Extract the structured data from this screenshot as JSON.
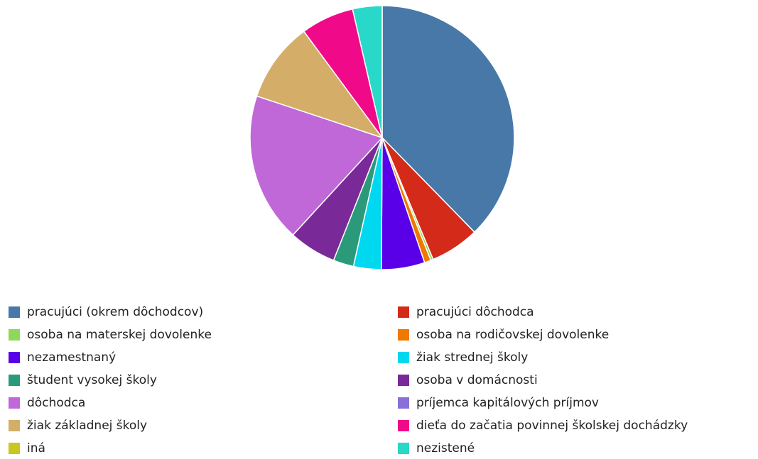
{
  "chart_data": {
    "type": "pie",
    "categories": [
      "pracujúci (okrem dôchodcov)",
      "pracujúci dôchodca",
      "osoba na materskej dovolenke",
      "osoba na rodičovskej dovolenke",
      "nezamestnaný",
      "žiak strednej školy",
      "študent vysokej školy",
      "osoba v domácnosti",
      "dôchodca",
      "príjemca kapitálových príjmov",
      "žiak základnej školy",
      "dieťa do začatia povinnej školskej dochádzky",
      "iná",
      "nezistené"
    ],
    "values": [
      37.7,
      6.0,
      0.3,
      0.8,
      5.3,
      3.4,
      2.5,
      5.8,
      18.3,
      0,
      9.8,
      6.5,
      0,
      3.6
    ],
    "colors": [
      "#4878a8",
      "#d42a1a",
      "#8fd85a",
      "#f07800",
      "#5a00e8",
      "#00d8f0",
      "#2a9a7a",
      "#7a2a98",
      "#c068d8",
      "#8870d8",
      "#d4ae68",
      "#f00a8a",
      "#c8c820",
      "#28d8c8"
    ],
    "legend": "bottom"
  }
}
